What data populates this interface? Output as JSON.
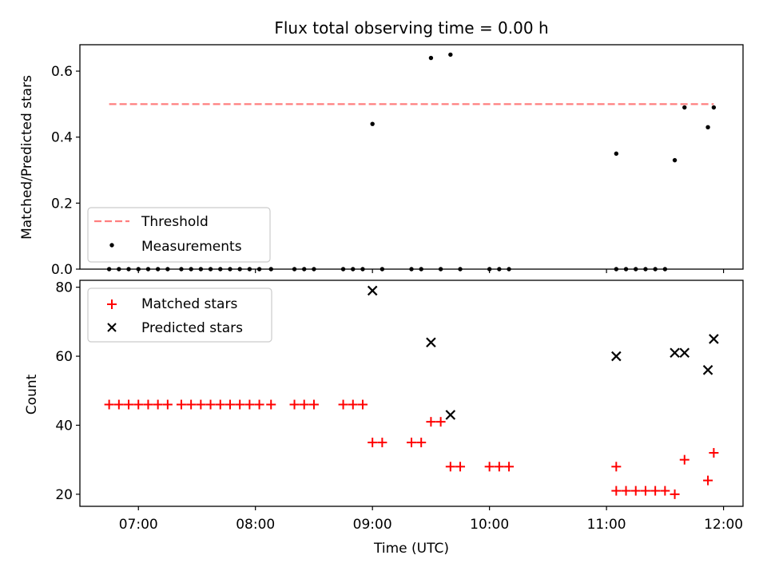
{
  "chart_data": [
    {
      "type": "scatter",
      "title": "Flux total observing time = 0.00 h",
      "xlabel": "",
      "ylabel": "Matched/Predicted stars",
      "xlim": [
        "06:30",
        "12:10"
      ],
      "ylim": [
        0,
        0.68
      ],
      "xticks": [],
      "yticks": [
        0.0,
        0.2,
        0.4,
        0.6
      ],
      "ytick_labels": [
        "0.0",
        "0.2",
        "0.4",
        "0.6"
      ],
      "legend_position": "lower-left",
      "threshold": {
        "name": "Threshold",
        "value": 0.5,
        "x_range": [
          "06:45",
          "11:55"
        ],
        "color": "#ff7f7f",
        "style": "dashed"
      },
      "series": [
        {
          "name": "Measurements",
          "color": "#000000",
          "marker": "dot",
          "points": [
            [
              "06:45",
              0.0
            ],
            [
              "06:50",
              0.0
            ],
            [
              "06:55",
              0.0
            ],
            [
              "07:00",
              0.0
            ],
            [
              "07:05",
              0.0
            ],
            [
              "07:10",
              0.0
            ],
            [
              "07:15",
              0.0
            ],
            [
              "07:22",
              0.0
            ],
            [
              "07:27",
              0.0
            ],
            [
              "07:32",
              0.0
            ],
            [
              "07:37",
              0.0
            ],
            [
              "07:42",
              0.0
            ],
            [
              "07:47",
              0.0
            ],
            [
              "07:52",
              0.0
            ],
            [
              "07:57",
              0.0
            ],
            [
              "08:02",
              0.0
            ],
            [
              "08:08",
              0.0
            ],
            [
              "08:20",
              0.0
            ],
            [
              "08:25",
              0.0
            ],
            [
              "08:30",
              0.0
            ],
            [
              "08:45",
              0.0
            ],
            [
              "08:50",
              0.0
            ],
            [
              "08:55",
              0.0
            ],
            [
              "09:00",
              0.44
            ],
            [
              "09:05",
              0.0
            ],
            [
              "09:20",
              0.0
            ],
            [
              "09:25",
              0.0
            ],
            [
              "09:30",
              0.64
            ],
            [
              "09:35",
              0.0
            ],
            [
              "09:40",
              0.65
            ],
            [
              "09:45",
              0.0
            ],
            [
              "10:00",
              0.0
            ],
            [
              "10:05",
              0.0
            ],
            [
              "10:10",
              0.0
            ],
            [
              "11:05",
              0.35
            ],
            [
              "11:05",
              0.0
            ],
            [
              "11:10",
              0.0
            ],
            [
              "11:15",
              0.0
            ],
            [
              "11:20",
              0.0
            ],
            [
              "11:25",
              0.0
            ],
            [
              "11:30",
              0.0
            ],
            [
              "11:35",
              0.33
            ],
            [
              "11:40",
              0.49
            ],
            [
              "11:52",
              0.43
            ],
            [
              "11:55",
              0.49
            ]
          ]
        }
      ]
    },
    {
      "type": "scatter",
      "title": "",
      "xlabel": "Time (UTC)",
      "ylabel": "Count",
      "xlim": [
        "06:30",
        "12:10"
      ],
      "ylim": [
        16.5,
        82
      ],
      "xticks": [
        "07:00",
        "08:00",
        "09:00",
        "10:00",
        "11:00",
        "12:00"
      ],
      "xtick_labels": [
        "07:00",
        "08:00",
        "09:00",
        "10:00",
        "11:00",
        "12:00"
      ],
      "yticks": [
        20,
        40,
        60,
        80
      ],
      "ytick_labels": [
        "20",
        "40",
        "60",
        "80"
      ],
      "legend_position": "upper-left",
      "series": [
        {
          "name": "Matched stars",
          "color": "#ff0000",
          "marker": "plus",
          "points": [
            [
              "06:45",
              46
            ],
            [
              "06:50",
              46
            ],
            [
              "06:55",
              46
            ],
            [
              "07:00",
              46
            ],
            [
              "07:05",
              46
            ],
            [
              "07:10",
              46
            ],
            [
              "07:15",
              46
            ],
            [
              "07:22",
              46
            ],
            [
              "07:27",
              46
            ],
            [
              "07:32",
              46
            ],
            [
              "07:37",
              46
            ],
            [
              "07:42",
              46
            ],
            [
              "07:47",
              46
            ],
            [
              "07:52",
              46
            ],
            [
              "07:57",
              46
            ],
            [
              "08:02",
              46
            ],
            [
              "08:08",
              46
            ],
            [
              "08:20",
              46
            ],
            [
              "08:25",
              46
            ],
            [
              "08:30",
              46
            ],
            [
              "08:45",
              46
            ],
            [
              "08:50",
              46
            ],
            [
              "08:55",
              46
            ],
            [
              "09:00",
              35
            ],
            [
              "09:05",
              35
            ],
            [
              "09:20",
              35
            ],
            [
              "09:25",
              35
            ],
            [
              "09:30",
              41
            ],
            [
              "09:35",
              41
            ],
            [
              "09:40",
              28
            ],
            [
              "09:45",
              28
            ],
            [
              "10:00",
              28
            ],
            [
              "10:05",
              28
            ],
            [
              "10:10",
              28
            ],
            [
              "11:05",
              28
            ],
            [
              "11:05",
              21
            ],
            [
              "11:10",
              21
            ],
            [
              "11:15",
              21
            ],
            [
              "11:20",
              21
            ],
            [
              "11:25",
              21
            ],
            [
              "11:30",
              21
            ],
            [
              "11:35",
              20
            ],
            [
              "11:40",
              30
            ],
            [
              "11:52",
              24
            ],
            [
              "11:55",
              32
            ]
          ]
        },
        {
          "name": "Predicted stars",
          "color": "#000000",
          "marker": "x",
          "points": [
            [
              "09:00",
              79
            ],
            [
              "09:30",
              64
            ],
            [
              "09:40",
              43
            ],
            [
              "11:05",
              60
            ],
            [
              "11:35",
              61
            ],
            [
              "11:40",
              61
            ],
            [
              "11:52",
              56
            ],
            [
              "11:55",
              65
            ]
          ]
        }
      ]
    }
  ]
}
